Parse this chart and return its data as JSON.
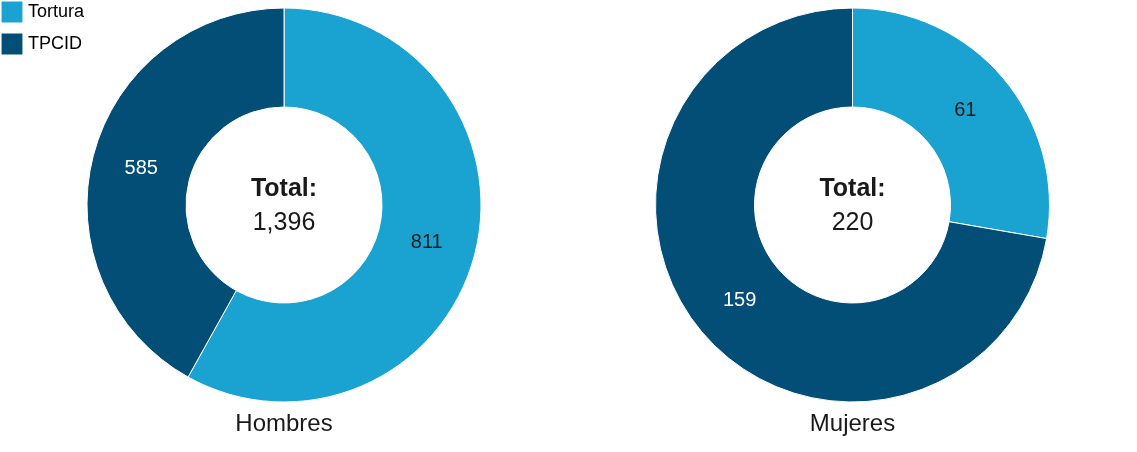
{
  "chart_data": [
    {
      "type": "donut",
      "title": "Hombres",
      "categories": [
        "Tortura",
        "TPCID"
      ],
      "values": [
        811,
        585
      ],
      "colors": [
        "#1aa3d0",
        "#034e77"
      ],
      "data_labels": true,
      "legend": "top left",
      "annotations": [
        "Total:",
        "1,396"
      ]
    },
    {
      "type": "donut",
      "title": "Mujeres",
      "categories": [
        null,
        null
      ],
      "values": [
        61,
        159
      ],
      "colors": [
        "#1aa3d0",
        "#034e77"
      ],
      "data_labels": true,
      "legend": false,
      "annotations": [
        "Total:",
        "220"
      ]
    }
  ]
}
